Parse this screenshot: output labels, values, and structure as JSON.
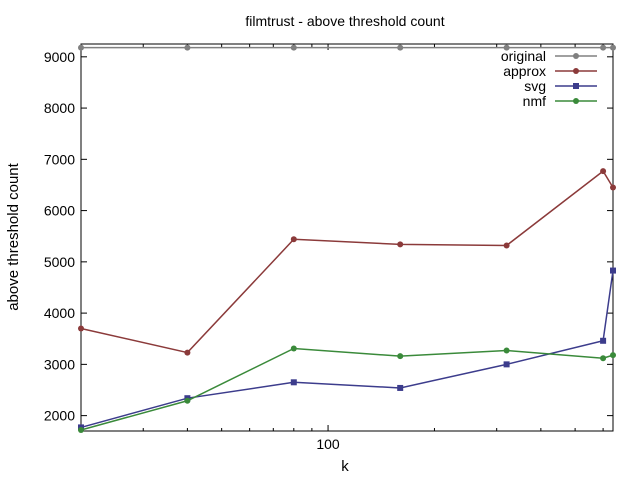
{
  "chart_data": {
    "type": "line",
    "title": "filmtrust - above threshold count",
    "xlabel": "k",
    "ylabel": "above threshold count",
    "x_scale": "log",
    "xlim": [
      20,
      640
    ],
    "ylim": [
      1700,
      9250
    ],
    "x_ticks": [
      100
    ],
    "y_ticks": [
      2000,
      3000,
      4000,
      5000,
      6000,
      7000,
      8000,
      9000
    ],
    "grid": false,
    "legend_position": "top-right",
    "x": [
      20,
      40,
      80,
      160,
      320,
      600,
      640
    ],
    "series": [
      {
        "name": "original",
        "color": "#808080",
        "marker": "circle",
        "values": [
          9180,
          9180,
          9180,
          9180,
          9180,
          9180,
          9180
        ]
      },
      {
        "name": "approx",
        "color": "#8b3a3a",
        "marker": "circle",
        "values": [
          3700,
          3230,
          5440,
          5340,
          5320,
          6770,
          6450
        ]
      },
      {
        "name": "svg",
        "color": "#3c3c8c",
        "marker": "square",
        "values": [
          1770,
          2340,
          2650,
          2540,
          3000,
          3460,
          4830
        ]
      },
      {
        "name": "nmf",
        "color": "#3a8a3a",
        "marker": "circle",
        "values": [
          1720,
          2290,
          3310,
          3160,
          3270,
          3120,
          3180
        ]
      }
    ]
  }
}
